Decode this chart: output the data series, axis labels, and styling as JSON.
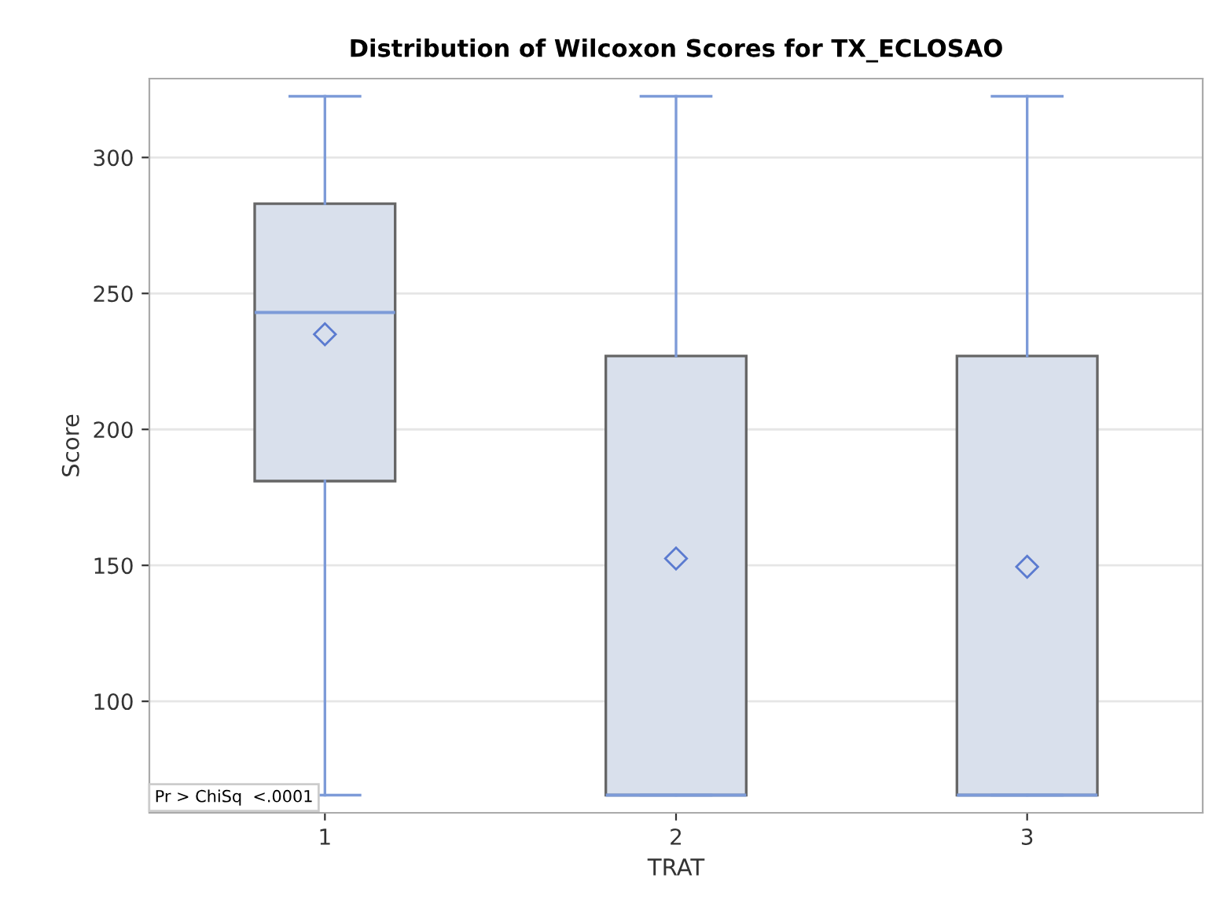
{
  "chart_data": {
    "type": "box",
    "title": "Distribution of Wilcoxon Scores for TX_ECLOSAO",
    "xlabel": "TRAT",
    "ylabel": "Score",
    "categories": [
      "1",
      "2",
      "3"
    ],
    "boxes": [
      {
        "low": 65.5,
        "q1": 181,
        "median": 243,
        "q3": 283,
        "high": 322.5,
        "mean": 235
      },
      {
        "low": 65.5,
        "q1": 65.5,
        "median": 65.5,
        "q3": 227,
        "high": 322.5,
        "mean": 152.5
      },
      {
        "low": 65.5,
        "q1": 65.5,
        "median": 65.5,
        "q3": 227,
        "high": 322.5,
        "mean": 149.5
      }
    ],
    "color": "#d9e0ec",
    "ylim": [
      59,
      329
    ],
    "yticks": [
      100,
      150,
      200,
      250,
      300
    ],
    "grid": "y",
    "marker": "diamond",
    "annotations": [
      "Pr > ChiSq  <.0001"
    ]
  }
}
